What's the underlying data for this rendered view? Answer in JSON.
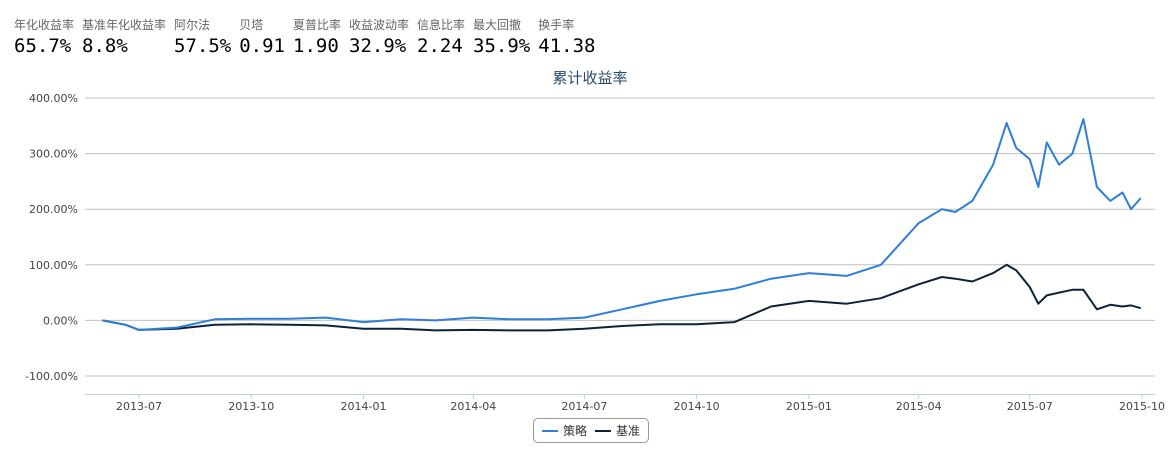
{
  "metrics": [
    {
      "label": "年化收益率",
      "value": "65.7%"
    },
    {
      "label": "基准年化收益率",
      "value": "8.8%"
    },
    {
      "label": "阿尔法",
      "value": "57.5%"
    },
    {
      "label": "贝塔",
      "value": "0.91"
    },
    {
      "label": "夏普比率",
      "value": "1.90"
    },
    {
      "label": "收益波动率",
      "value": "32.9%"
    },
    {
      "label": "信息比率",
      "value": "2.24"
    },
    {
      "label": "最大回撤",
      "value": "35.9%"
    },
    {
      "label": "换手率",
      "value": "41.38"
    }
  ],
  "chart_data": {
    "type": "line",
    "title": "累计收益率",
    "ylim": [
      -100,
      400
    ],
    "yticks": [
      -100,
      0,
      100,
      200,
      300,
      400
    ],
    "ytick_labels": [
      "-100.00%",
      "0.00%",
      "100.00%",
      "200.00%",
      "300.00%",
      "400.00%"
    ],
    "xticks": [
      "2013-07",
      "2013-10",
      "2014-01",
      "2014-04",
      "2014-07",
      "2014-10",
      "2015-01",
      "2015-04",
      "2015-07",
      "2015-10"
    ],
    "grid": true,
    "legend_placement": "bottom",
    "x": [
      "2013-06-01",
      "2013-06-20",
      "2013-07-01",
      "2013-08-01",
      "2013-09-01",
      "2013-10-01",
      "2013-11-01",
      "2013-12-01",
      "2014-01-01",
      "2014-02-01",
      "2014-03-01",
      "2014-04-01",
      "2014-05-01",
      "2014-06-01",
      "2014-07-01",
      "2014-08-01",
      "2014-09-01",
      "2014-10-01",
      "2014-11-01",
      "2014-12-01",
      "2015-01-01",
      "2015-02-01",
      "2015-03-01",
      "2015-04-01",
      "2015-04-20",
      "2015-05-01",
      "2015-05-15",
      "2015-06-01",
      "2015-06-12",
      "2015-06-20",
      "2015-07-01",
      "2015-07-08",
      "2015-07-15",
      "2015-07-25",
      "2015-08-05",
      "2015-08-14",
      "2015-08-25",
      "2015-09-05",
      "2015-09-15",
      "2015-09-22",
      "2015-09-30"
    ],
    "series": [
      {
        "name": "策略",
        "color": "#2f7ed8",
        "values": [
          0,
          -8,
          -17,
          -13,
          2,
          3,
          3,
          5,
          -3,
          2,
          0,
          5,
          2,
          2,
          5,
          20,
          35,
          47,
          57,
          75,
          85,
          80,
          100,
          175,
          200,
          195,
          215,
          280,
          355,
          310,
          290,
          240,
          320,
          280,
          300,
          362,
          240,
          215,
          230,
          200,
          220
        ]
      },
      {
        "name": "基准",
        "color": "#0d233a",
        "values": [
          0,
          -8,
          -17,
          -15,
          -8,
          -7,
          -8,
          -9,
          -15,
          -15,
          -18,
          -17,
          -18,
          -18,
          -15,
          -10,
          -7,
          -7,
          -3,
          25,
          35,
          30,
          40,
          65,
          78,
          75,
          70,
          85,
          100,
          90,
          60,
          30,
          45,
          50,
          55,
          55,
          20,
          28,
          25,
          27,
          22
        ]
      }
    ]
  }
}
